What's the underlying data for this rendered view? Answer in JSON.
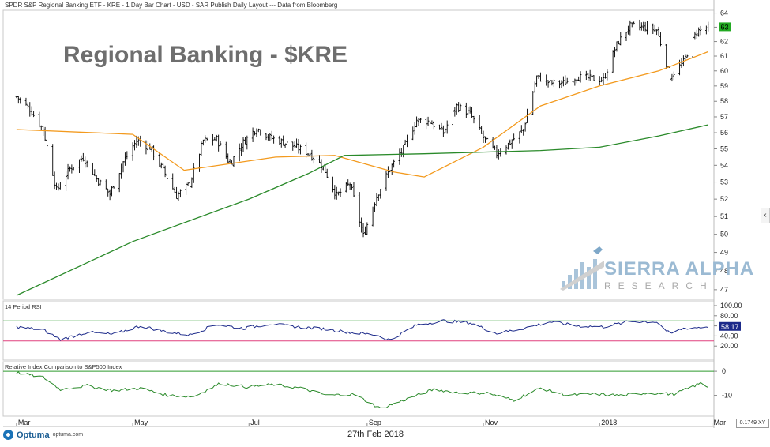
{
  "header": {
    "title": "SPDR S&P Regional Banking ETF - KRE - 1 Day Bar Chart - USD - SAR Publish Daily Layout --- Data from Bloomberg"
  },
  "overlay_title": "Regional Banking - $KRE",
  "watermark": {
    "name": "SIERRA ALPHA",
    "sub": "RESEARCH"
  },
  "panels": {
    "rsi_label": "14 Period RSI",
    "relative_label": "Relative Index Comparison to S&P500 Index"
  },
  "footer": {
    "date": "27th Feb 2018",
    "brand": "Optuma",
    "site": "optuma.com",
    "scale_readout": "0.1749 XY"
  },
  "colors": {
    "price_bars": "#000000",
    "ma50": "#f39a1e",
    "ma200": "#2a8a2a",
    "rsi_line": "#1c2a8a",
    "rsi_upper_band": "#2e9a2e",
    "rsi_lower_band": "#e0407e",
    "relative_line": "#2a8a2a",
    "relative_zero": "#2e9a2e",
    "last_price_badge": "#22aa22"
  },
  "chart_data": [
    {
      "type": "bar",
      "subtype": "ohlc-daily",
      "title": "Regional Banking - $KRE",
      "x_axis_labels": [
        "Mar",
        "May",
        "Jul",
        "Sep",
        "Nov",
        "2018",
        "Mar"
      ],
      "y_ticks": [
        47,
        48,
        49,
        50,
        51,
        52,
        53,
        54,
        55,
        56,
        57,
        58,
        59,
        60,
        61,
        62,
        63,
        64
      ],
      "ylim": [
        46.5,
        64.2
      ],
      "scale": "log",
      "last_value": 63,
      "close_series": {
        "name": "KRE close",
        "x": [
          "2017-03-01",
          "2017-03-08",
          "2017-03-15",
          "2017-03-22",
          "2017-03-29",
          "2017-04-05",
          "2017-04-12",
          "2017-04-19",
          "2017-04-26",
          "2017-05-03",
          "2017-05-10",
          "2017-05-17",
          "2017-05-24",
          "2017-05-31",
          "2017-06-07",
          "2017-06-14",
          "2017-06-21",
          "2017-06-28",
          "2017-07-05",
          "2017-07-12",
          "2017-07-19",
          "2017-07-26",
          "2017-08-02",
          "2017-08-09",
          "2017-08-16",
          "2017-08-23",
          "2017-08-30",
          "2017-09-06",
          "2017-09-13",
          "2017-09-20",
          "2017-09-27",
          "2017-10-04",
          "2017-10-11",
          "2017-10-18",
          "2017-10-25",
          "2017-11-01",
          "2017-11-08",
          "2017-11-15",
          "2017-11-22",
          "2017-11-29",
          "2017-12-06",
          "2017-12-13",
          "2017-12-20",
          "2017-12-27",
          "2018-01-03",
          "2018-01-10",
          "2018-01-17",
          "2018-01-24",
          "2018-01-31",
          "2018-02-07",
          "2018-02-14",
          "2018-02-21",
          "2018-02-27"
        ],
        "values": [
          58.3,
          57.5,
          56.2,
          52.5,
          53.8,
          54.5,
          53.2,
          52.3,
          54.2,
          55.5,
          55.1,
          53.7,
          52.2,
          52.9,
          55.5,
          55.6,
          54.1,
          55.4,
          56.3,
          55.7,
          55.4,
          55.1,
          54.7,
          53.9,
          52.2,
          52.9,
          49.9,
          52.2,
          53.8,
          55.0,
          56.8,
          56.7,
          56.0,
          57.7,
          57.2,
          55.7,
          54.7,
          55.4,
          56.2,
          59.6,
          59.2,
          59.2,
          59.6,
          59.5,
          59.4,
          61.8,
          63.1,
          63.0,
          62.8,
          59.6,
          60.6,
          62.7,
          63.0
        ]
      },
      "ma_series": [
        {
          "name": "50-day MA",
          "x": [
            "2017-03-01",
            "2017-05-01",
            "2017-05-28",
            "2017-07-15",
            "2017-08-15",
            "2017-09-15",
            "2017-10-01",
            "2017-11-01",
            "2017-12-01",
            "2018-01-01",
            "2018-02-01",
            "2018-02-27"
          ],
          "values": [
            56.2,
            55.9,
            53.7,
            54.5,
            54.6,
            53.6,
            53.3,
            55.1,
            57.7,
            59.0,
            60.0,
            61.3
          ]
        },
        {
          "name": "200-day MA",
          "x": [
            "2017-03-01",
            "2017-05-01",
            "2017-07-01",
            "2017-08-01",
            "2017-08-20",
            "2017-10-01",
            "2017-11-01",
            "2017-12-01",
            "2018-01-01",
            "2018-02-01",
            "2018-02-27"
          ],
          "values": [
            46.7,
            49.6,
            52.0,
            53.5,
            54.6,
            54.7,
            54.8,
            54.9,
            55.1,
            55.8,
            56.5
          ]
        }
      ]
    },
    {
      "type": "line",
      "title": "14 Period RSI",
      "y_ticks": [
        20,
        40,
        60,
        80,
        100
      ],
      "ylim": [
        0,
        100
      ],
      "last_value": 58.17,
      "bands": [
        70,
        30
      ],
      "series": [
        {
          "name": "RSI",
          "x": [
            "2017-03-01",
            "2017-03-15",
            "2017-03-24",
            "2017-04-07",
            "2017-04-21",
            "2017-05-05",
            "2017-05-19",
            "2017-05-31",
            "2017-06-14",
            "2017-06-28",
            "2017-07-12",
            "2017-07-26",
            "2017-08-09",
            "2017-08-23",
            "2017-09-06",
            "2017-09-13",
            "2017-09-27",
            "2017-10-11",
            "2017-10-25",
            "2017-11-08",
            "2017-11-22",
            "2017-12-06",
            "2017-12-20",
            "2018-01-03",
            "2018-01-17",
            "2018-01-31",
            "2018-02-07",
            "2018-02-14",
            "2018-02-27"
          ],
          "values": [
            58,
            52,
            33,
            47,
            43,
            60,
            48,
            42,
            63,
            55,
            64,
            58,
            54,
            47,
            42,
            32,
            62,
            70,
            66,
            45,
            55,
            68,
            60,
            58,
            69,
            68,
            44,
            55,
            58.17
          ]
        }
      ]
    },
    {
      "type": "line",
      "title": "Relative Index Comparison to S&P500 Index",
      "y_ticks": [
        0,
        -10
      ],
      "ylim": [
        -18,
        2
      ],
      "series": [
        {
          "name": "KRE vs S&P500",
          "x": [
            "2017-03-01",
            "2017-03-15",
            "2017-03-24",
            "2017-04-07",
            "2017-04-21",
            "2017-05-05",
            "2017-05-19",
            "2017-06-02",
            "2017-06-16",
            "2017-06-30",
            "2017-07-14",
            "2017-07-28",
            "2017-08-11",
            "2017-08-25",
            "2017-09-08",
            "2017-09-22",
            "2017-10-06",
            "2017-10-20",
            "2017-11-03",
            "2017-11-17",
            "2017-12-01",
            "2017-12-15",
            "2017-12-29",
            "2018-01-12",
            "2018-01-26",
            "2018-02-09",
            "2018-02-23",
            "2018-02-27"
          ],
          "values": [
            -0.5,
            -2.5,
            -7.5,
            -6.0,
            -8.0,
            -7.0,
            -10.0,
            -10.5,
            -5.0,
            -6.5,
            -5.5,
            -7.0,
            -10.0,
            -9.5,
            -15.5,
            -11.5,
            -7.5,
            -9.0,
            -9.0,
            -12.0,
            -7.0,
            -10.0,
            -9.5,
            -10.0,
            -9.0,
            -9.5,
            -5.0,
            -6.5
          ]
        }
      ]
    }
  ]
}
